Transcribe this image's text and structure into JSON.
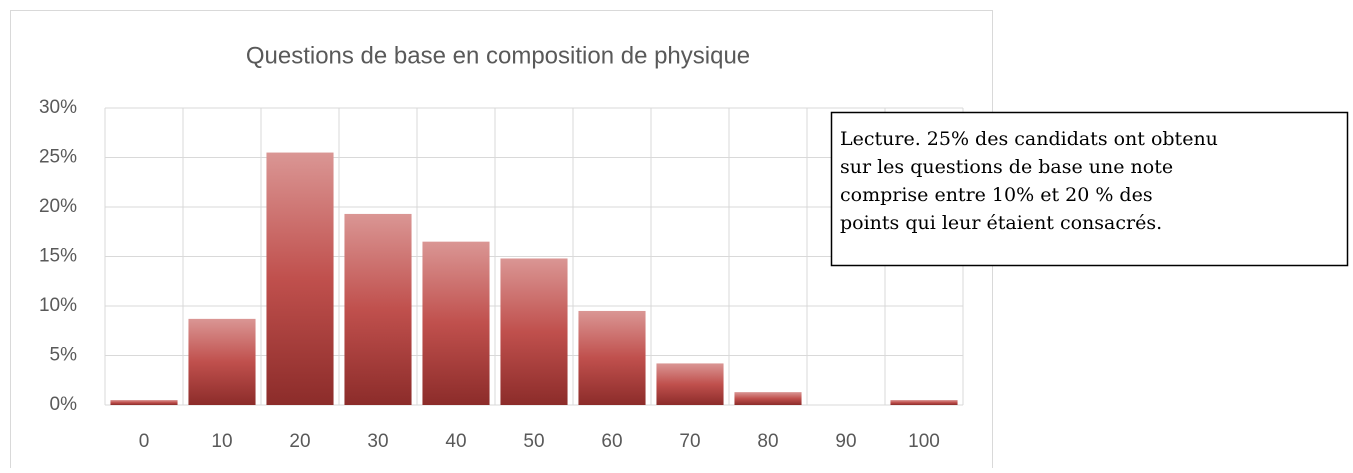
{
  "chart_data": {
    "type": "bar",
    "title": "Questions de base en composition de physique",
    "categories": [
      "0",
      "10",
      "20",
      "30",
      "40",
      "50",
      "60",
      "70",
      "80",
      "90",
      "100"
    ],
    "values": [
      0.5,
      8.7,
      25.5,
      19.3,
      16.5,
      14.8,
      9.5,
      4.2,
      1.3,
      0,
      0.5
    ],
    "color": "#c0504d",
    "ylim": [
      0,
      30
    ],
    "yticks": [
      {
        "value": 0,
        "label": "0%"
      },
      {
        "value": 5,
        "label": "5%"
      },
      {
        "value": 10,
        "label": "10%"
      },
      {
        "value": 15,
        "label": "15%"
      },
      {
        "value": 20,
        "label": "20%"
      },
      {
        "value": 25,
        "label": "25%"
      },
      {
        "value": 30,
        "label": "30%"
      }
    ],
    "grid": true,
    "annotation": [
      "Lecture. 25% des candidats ont obtenu",
      "sur les questions de base une note",
      "comprise entre 10% et 20 % des",
      "points qui leur étaient consacrés."
    ]
  }
}
